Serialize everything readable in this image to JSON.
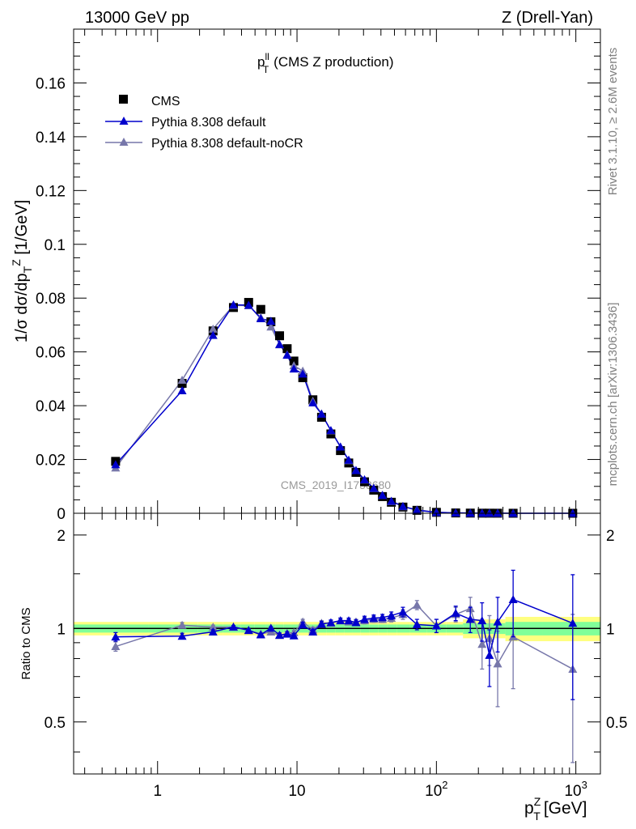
{
  "header": {
    "energy_label": "13000 GeV pp",
    "process_label": "Z (Drell-Yan)"
  },
  "side_labels": {
    "rivet": "Rivet 3.1.10, ≥ 2.6M events",
    "mcplots": "mcplots.cern.ch [arXiv:1306.3436]"
  },
  "watermark": "CMS_2019_I1753680",
  "colors": {
    "cms": "#000000",
    "default": "#0000cc",
    "nocr": "#7777aa",
    "band_yellow": "#ffff80",
    "band_green": "#80ff99"
  },
  "chart_data": [
    {
      "type": "scatter",
      "title": "p_T^ll (CMS Z production)",
      "title_main": "p",
      "title_sup": "ll",
      "title_sub": "T",
      "title_rest": "(CMS Z production)",
      "ylabel": "1/σ dσ/dp_T^Z [1/GeV]",
      "xscale": "log",
      "xlim": [
        0.25,
        1500
      ],
      "ylim": [
        0,
        0.18
      ],
      "ytick_labels": [
        "0",
        "0.02",
        "0.04",
        "0.06",
        "0.08",
        "0.1",
        "0.12",
        "0.14",
        "0.16"
      ],
      "legend": [
        "CMS",
        "Pythia 8.308 default",
        "Pythia 8.308 default-noCR"
      ],
      "legend_position": "top-left",
      "x": [
        0.5,
        1.5,
        2.5,
        3.5,
        4.5,
        5.5,
        6.5,
        7.5,
        8.5,
        9.5,
        11,
        13,
        15,
        17.5,
        20.5,
        23.5,
        26.5,
        30.5,
        35.5,
        41,
        47.5,
        57.5,
        72.5,
        100,
        137.5,
        175,
        212.5,
        240,
        275,
        355,
        950
      ],
      "series": [
        {
          "name": "CMS",
          "marker": "square",
          "values": [
            0.0193,
            0.0483,
            0.0678,
            0.0765,
            0.0784,
            0.0758,
            0.0712,
            0.066,
            0.0612,
            0.0566,
            0.0504,
            0.0422,
            0.0357,
            0.0295,
            0.0233,
            0.0187,
            0.0152,
            0.0117,
            0.0086,
            0.0062,
            0.0041,
            0.0023,
            0.0011,
            0.00035,
            0.00012,
            6e-05,
            3.5e-05,
            3e-05,
            2e-05,
            1e-05,
            1e-06
          ]
        },
        {
          "name": "Pythia 8.308 default",
          "marker": "triangle",
          "values": [
            0.0181,
            0.0456,
            0.0662,
            0.0775,
            0.0774,
            0.0724,
            0.0714,
            0.0628,
            0.0588,
            0.0537,
            0.0518,
            0.0411,
            0.0369,
            0.0308,
            0.0247,
            0.0198,
            0.0159,
            0.0125,
            0.0093,
            0.0067,
            0.0045,
            0.0026,
            0.00113,
            0.000357,
            0.000135,
            6.4e-05,
            3.7e-05,
            2.5e-05,
            2.1e-05,
            1.24e-05,
            1e-06
          ]
        },
        {
          "name": "Pythia 8.308 default-noCR",
          "marker": "triangle",
          "values": [
            0.0169,
            0.0495,
            0.0685,
            0.0773,
            0.0772,
            0.0728,
            0.0693,
            0.0627,
            0.059,
            0.0549,
            0.0529,
            0.0417,
            0.037,
            0.0307,
            0.0247,
            0.0196,
            0.016,
            0.0124,
            0.0092,
            0.0067,
            0.0044,
            0.0025,
            0.00131,
            0.000357,
            0.000134,
            5.7e-05,
            3.1e-05,
            2.8e-05,
            1.54e-05,
            9.4e-06,
            1e-06
          ]
        }
      ]
    },
    {
      "type": "scatter",
      "title": "",
      "xlabel": "p_T^Z [GeV]",
      "xlabel_main": "p",
      "xlabel_sup": "Z",
      "xlabel_sub": "T",
      "xlabel_rest": "[GeV]",
      "ylabel": "Ratio to CMS",
      "xscale": "log",
      "xlim": [
        0.25,
        1500
      ],
      "ylim": [
        0.34,
        2.35
      ],
      "yscale": "log",
      "xtick_labels": [
        "1",
        "10",
        "10^2",
        "10^3"
      ],
      "ytick_labels": [
        "0.5",
        "1",
        "2"
      ],
      "x": [
        0.5,
        1.5,
        2.5,
        3.5,
        4.5,
        5.5,
        6.5,
        7.5,
        8.5,
        9.5,
        11,
        13,
        15,
        17.5,
        20.5,
        23.5,
        26.5,
        30.5,
        35.5,
        41,
        47.5,
        57.5,
        72.5,
        100,
        137.5,
        175,
        212.5,
        240,
        275,
        355,
        950
      ],
      "reference": {
        "value": 1.0,
        "band_inner_halfwidth": 0.03,
        "band_outer_halfwidth": 0.05
      },
      "series": [
        {
          "name": "Pythia 8.308 default",
          "values": [
            0.94,
            0.945,
            0.975,
            1.012,
            0.987,
            0.955,
            1.003,
            0.952,
            0.96,
            0.948,
            1.027,
            0.975,
            1.033,
            1.045,
            1.06,
            1.06,
            1.045,
            1.07,
            1.08,
            1.085,
            1.1,
            1.13,
            1.03,
            1.02,
            1.12,
            1.07,
            1.06,
            0.82,
            1.05,
            1.24,
            1.04
          ],
          "err": [
            0.03,
            0.02,
            0.015,
            0.01,
            0.01,
            0.01,
            0.01,
            0.015,
            0.015,
            0.015,
            0.02,
            0.02,
            0.02,
            0.02,
            0.02,
            0.02,
            0.02,
            0.025,
            0.025,
            0.025,
            0.03,
            0.04,
            0.04,
            0.05,
            0.06,
            0.1,
            0.15,
            0.17,
            0.21,
            0.3,
            0.45
          ]
        },
        {
          "name": "Pythia 8.308 default-noCR",
          "values": [
            0.875,
            1.025,
            1.01,
            1.01,
            0.985,
            0.96,
            0.975,
            0.95,
            0.965,
            0.97,
            1.05,
            0.99,
            1.04,
            1.04,
            1.06,
            1.05,
            1.05,
            1.06,
            1.07,
            1.07,
            1.08,
            1.11,
            1.19,
            1.02,
            1.11,
            1.16,
            0.89,
            0.93,
            0.77,
            0.94,
            0.74
          ],
          "err": [
            0.03,
            0.02,
            0.015,
            0.01,
            0.01,
            0.01,
            0.01,
            0.015,
            0.015,
            0.015,
            0.02,
            0.02,
            0.02,
            0.02,
            0.02,
            0.02,
            0.02,
            0.025,
            0.025,
            0.025,
            0.03,
            0.04,
            0.04,
            0.05,
            0.06,
            0.1,
            0.15,
            0.17,
            0.21,
            0.3,
            0.37
          ]
        }
      ]
    }
  ]
}
